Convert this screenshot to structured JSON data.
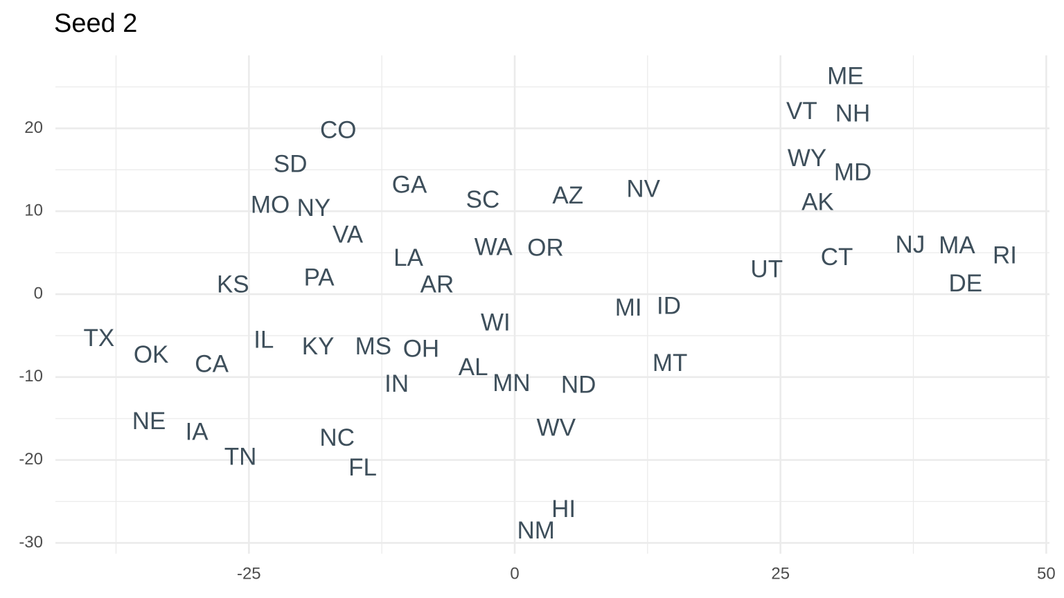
{
  "chart_data": {
    "type": "scatter",
    "title": "Seed 2",
    "labels": [
      "ME",
      "VT",
      "NH",
      "WY",
      "MD",
      "AK",
      "CO",
      "SD",
      "GA",
      "SC",
      "AZ",
      "NV",
      "MO",
      "NY",
      "VA",
      "LA",
      "WA",
      "OR",
      "NJ",
      "MA",
      "RI",
      "CT",
      "UT",
      "DE",
      "KS",
      "PA",
      "AR",
      "MI",
      "ID",
      "WI",
      "TX",
      "IL",
      "KY",
      "MS",
      "OH",
      "OK",
      "CA",
      "MT",
      "AL",
      "IN",
      "MN",
      "ND",
      "NE",
      "IA",
      "WV",
      "NC",
      "TN",
      "FL",
      "HI",
      "NM"
    ],
    "x": [
      31.1,
      27.0,
      31.8,
      27.5,
      31.8,
      28.5,
      -16.6,
      -21.1,
      -9.9,
      -3.0,
      5.0,
      12.1,
      -23.0,
      -18.9,
      -15.7,
      -10.0,
      -2.0,
      2.9,
      37.2,
      41.6,
      46.1,
      30.3,
      23.7,
      42.4,
      -26.5,
      -18.4,
      -7.3,
      10.7,
      14.5,
      -1.8,
      -39.1,
      -23.6,
      -18.5,
      -13.3,
      -8.8,
      -34.2,
      -28.5,
      14.6,
      -3.9,
      -11.1,
      -0.3,
      6.0,
      -34.4,
      -29.9,
      3.9,
      -16.7,
      -25.8,
      -14.3,
      4.6,
      2.0
    ],
    "y": [
      26.1,
      21.9,
      21.6,
      16.2,
      14.5,
      10.9,
      19.6,
      15.5,
      13.0,
      11.2,
      11.7,
      12.5,
      10.6,
      10.2,
      7.0,
      4.2,
      5.5,
      5.4,
      5.8,
      5.7,
      4.5,
      4.3,
      2.8,
      1.1,
      1.0,
      1.8,
      1.0,
      -1.8,
      -1.6,
      -3.6,
      -5.5,
      -5.7,
      -6.5,
      -6.5,
      -6.8,
      -7.5,
      -8.6,
      -8.5,
      -9.0,
      -11.0,
      -10.9,
      -11.1,
      -15.5,
      -16.8,
      -16.3,
      -17.5,
      -19.8,
      -21.1,
      -26.1,
      -28.7
    ],
    "color": "#3e4f5b",
    "xlim": [
      -43.2,
      50.3
    ],
    "ylim": [
      -31.3,
      28.8
    ],
    "xticks": [
      -25,
      0,
      25,
      50
    ],
    "yticks": [
      -30,
      -20,
      -10,
      0,
      10,
      20
    ],
    "grid": true
  }
}
